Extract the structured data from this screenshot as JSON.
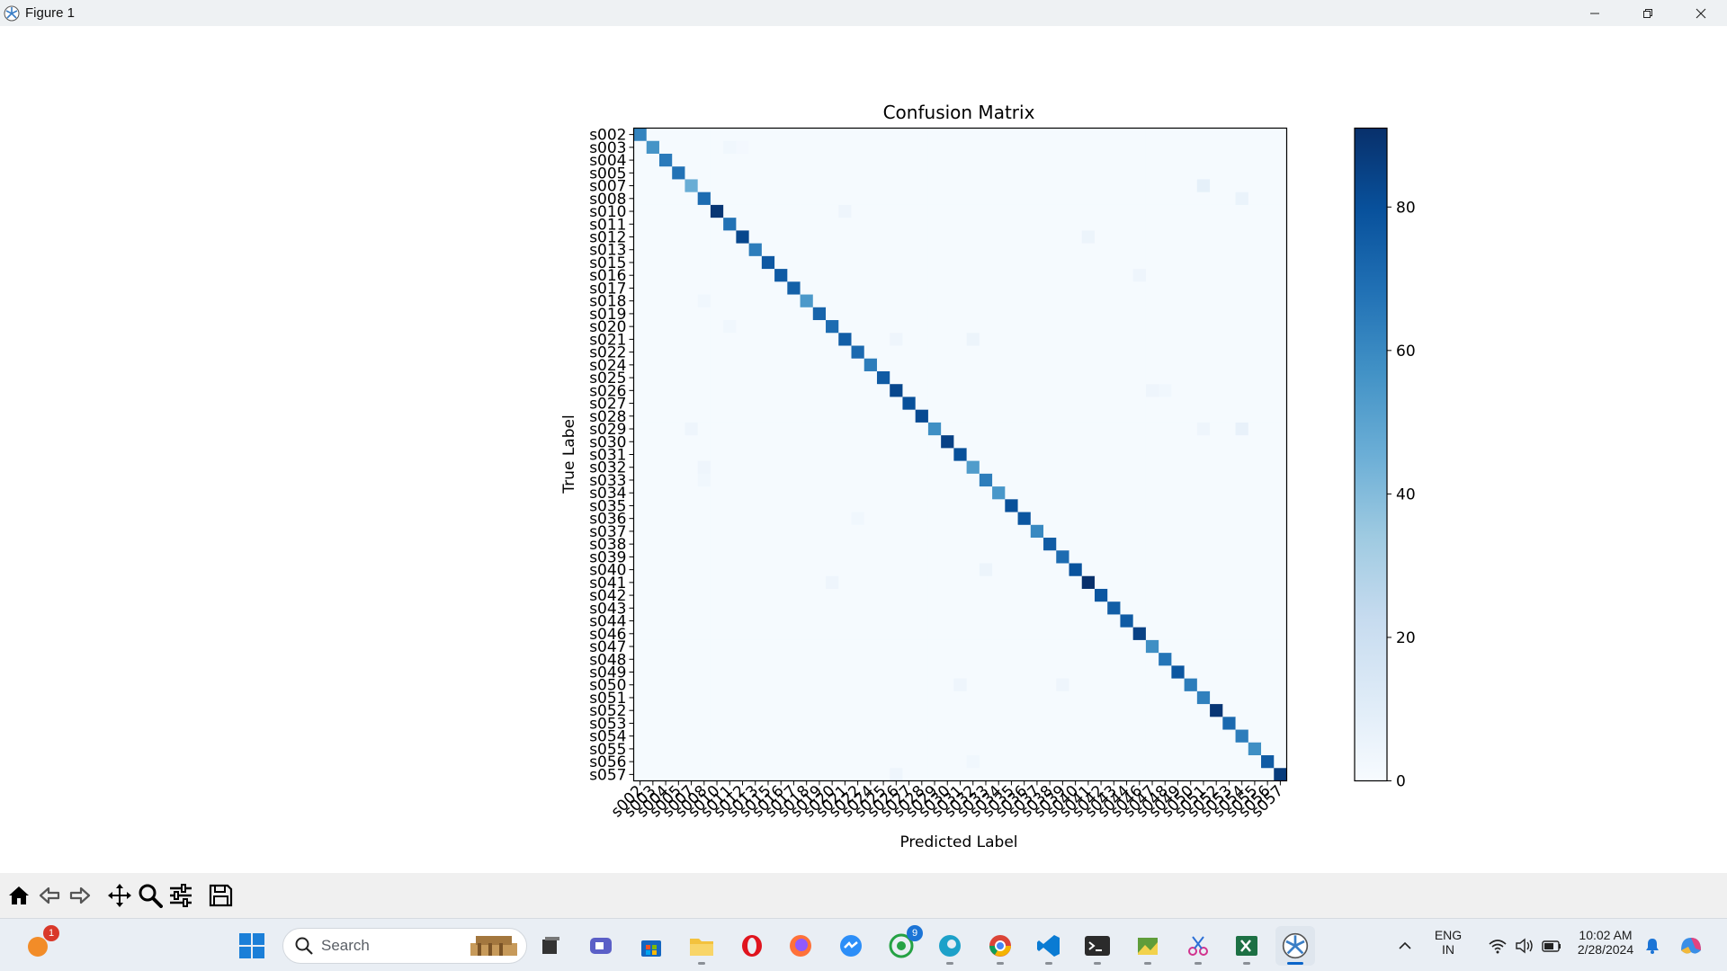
{
  "window": {
    "title": "Figure 1"
  },
  "chart_data": {
    "type": "heatmap",
    "title": "Confusion Matrix",
    "xlabel": "Predicted Label",
    "ylabel": "True Label",
    "labels": [
      "s002",
      "s003",
      "s004",
      "s005",
      "s007",
      "s008",
      "s010",
      "s011",
      "s012",
      "s013",
      "s015",
      "s016",
      "s017",
      "s018",
      "s019",
      "s020",
      "s021",
      "s022",
      "s024",
      "s025",
      "s026",
      "s027",
      "s028",
      "s029",
      "s030",
      "s031",
      "s032",
      "s033",
      "s034",
      "s035",
      "s036",
      "s037",
      "s038",
      "s039",
      "s040",
      "s041",
      "s042",
      "s043",
      "s044",
      "s046",
      "s047",
      "s048",
      "s049",
      "s050",
      "s051",
      "s052",
      "s053",
      "s054",
      "s055",
      "s056",
      "s057"
    ],
    "diagonal": [
      62,
      56,
      65,
      68,
      46,
      70,
      89,
      68,
      83,
      64,
      77,
      76,
      74,
      54,
      73,
      70,
      75,
      71,
      64,
      76,
      83,
      80,
      82,
      58,
      85,
      80,
      53,
      64,
      55,
      80,
      78,
      60,
      76,
      70,
      79,
      91,
      78,
      75,
      76,
      85,
      58,
      67,
      78,
      64,
      63,
      89,
      71,
      64,
      58,
      76,
      87
    ],
    "off_diagonal": [
      {
        "row": 1,
        "col": 7,
        "value": 3
      },
      {
        "row": 1,
        "col": 8,
        "value": 2
      },
      {
        "row": 4,
        "col": 44,
        "value": 8
      },
      {
        "row": 5,
        "col": 47,
        "value": 6
      },
      {
        "row": 6,
        "col": 16,
        "value": 4
      },
      {
        "row": 8,
        "col": 35,
        "value": 5
      },
      {
        "row": 11,
        "col": 39,
        "value": 4
      },
      {
        "row": 13,
        "col": 5,
        "value": 3
      },
      {
        "row": 15,
        "col": 7,
        "value": 3
      },
      {
        "row": 16,
        "col": 20,
        "value": 4
      },
      {
        "row": 16,
        "col": 26,
        "value": 5
      },
      {
        "row": 20,
        "col": 40,
        "value": 4
      },
      {
        "row": 20,
        "col": 41,
        "value": 3
      },
      {
        "row": 23,
        "col": 4,
        "value": 4
      },
      {
        "row": 23,
        "col": 44,
        "value": 4
      },
      {
        "row": 23,
        "col": 47,
        "value": 7
      },
      {
        "row": 26,
        "col": 5,
        "value": 4
      },
      {
        "row": 27,
        "col": 5,
        "value": 3
      },
      {
        "row": 30,
        "col": 17,
        "value": 3
      },
      {
        "row": 34,
        "col": 27,
        "value": 5
      },
      {
        "row": 35,
        "col": 15,
        "value": 4
      },
      {
        "row": 43,
        "col": 25,
        "value": 4
      },
      {
        "row": 43,
        "col": 33,
        "value": 4
      },
      {
        "row": 49,
        "col": 26,
        "value": 3
      },
      {
        "row": 50,
        "col": 20,
        "value": 4
      }
    ],
    "background_value": 1,
    "color_range": [
      0,
      91
    ],
    "colorbar_ticks": [
      0,
      20,
      40,
      60,
      80
    ],
    "colormap": "Blues"
  },
  "toolbar": {
    "buttons": [
      "home-icon",
      "back-arrow-icon",
      "forward-arrow-icon",
      "pan-icon",
      "zoom-icon",
      "configure-subplots-icon",
      "save-icon"
    ]
  },
  "taskbar": {
    "search_placeholder": "Search",
    "lang_line1": "ENG",
    "lang_line2": "IN",
    "time": "10:02 AM",
    "date": "2/28/2024",
    "notification_badge": "1",
    "whatsapp_badge": "9"
  }
}
